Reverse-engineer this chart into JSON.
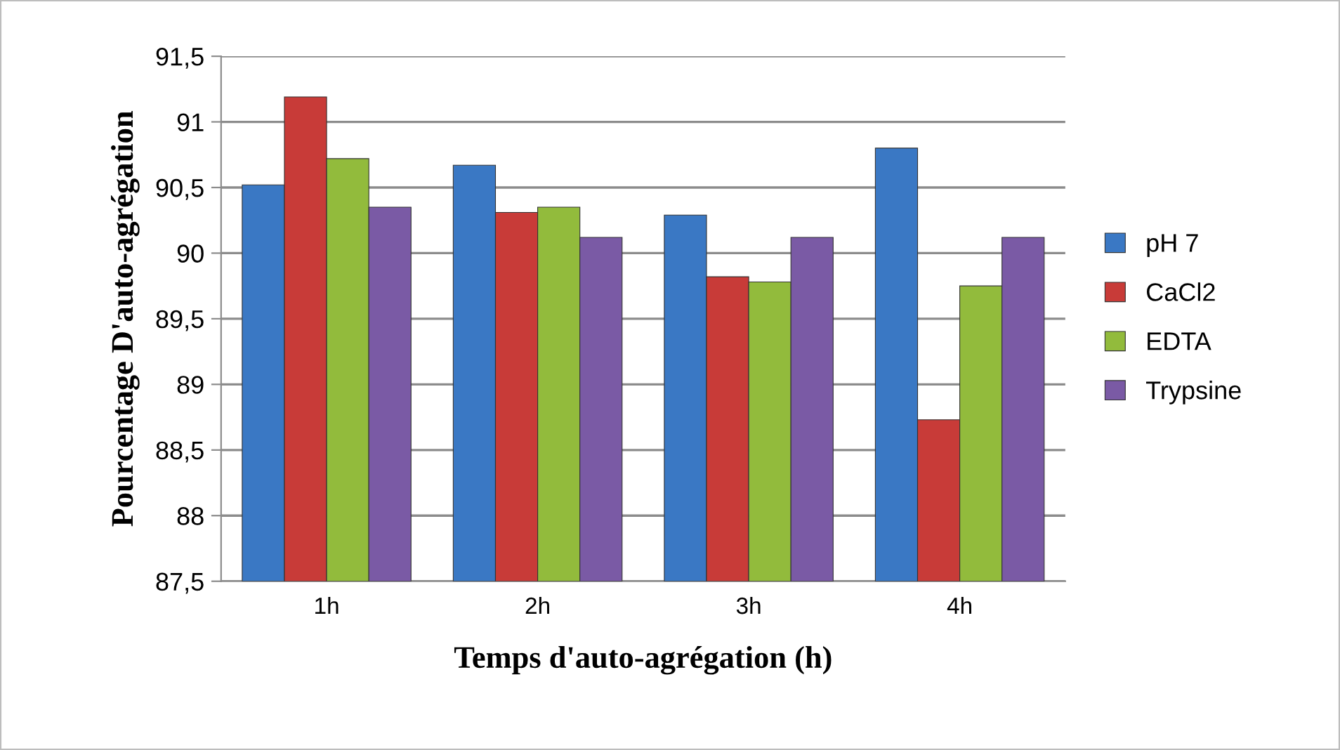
{
  "chart_data": {
    "type": "bar",
    "xlabel": "Temps d'auto-agrégation (h)",
    "ylabel": "Pourcentage D'auto-agrégation",
    "categories": [
      "1h",
      "2h",
      "3h",
      "4h"
    ],
    "series": [
      {
        "name": "pH 7",
        "color": "#3a78c4",
        "values": [
          90.52,
          90.67,
          90.29,
          90.8
        ]
      },
      {
        "name": "CaCl2",
        "color": "#c83b38",
        "values": [
          91.19,
          90.31,
          89.82,
          88.73
        ]
      },
      {
        "name": "EDTA",
        "color": "#92bb3c",
        "values": [
          90.72,
          90.35,
          89.78,
          89.75
        ]
      },
      {
        "name": "Trypsine",
        "color": "#7a5aa5",
        "values": [
          90.35,
          90.12,
          90.12,
          90.12
        ]
      }
    ],
    "ylim": [
      87.5,
      91.5
    ],
    "yticks": [
      {
        "value": 87.5,
        "label": "87,5"
      },
      88,
      {
        "value": 88.5,
        "label": "88,5"
      },
      89,
      {
        "value": 89.5,
        "label": "89,5"
      },
      90,
      {
        "value": 90.5,
        "label": "90,5"
      },
      91,
      {
        "value": 91.5,
        "label": "91,5"
      }
    ],
    "grid": "y",
    "legend": "right"
  }
}
